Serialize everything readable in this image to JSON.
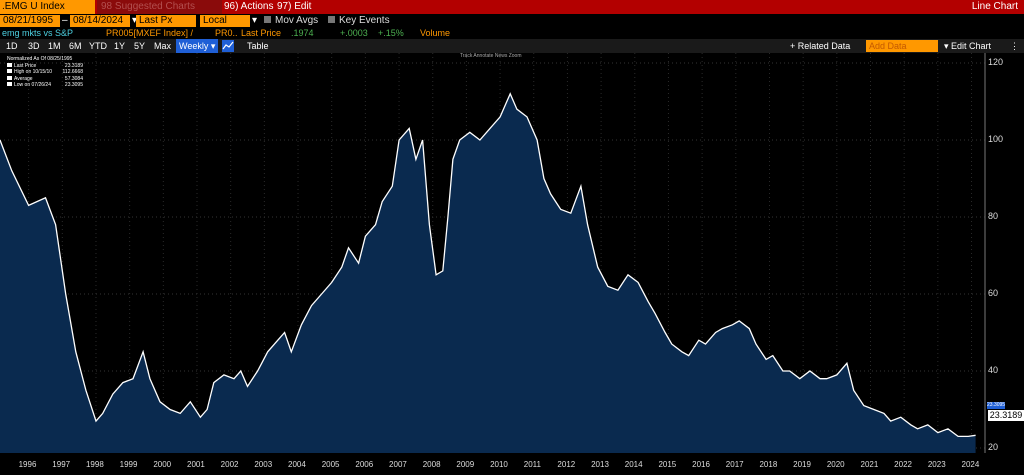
{
  "topbar": {
    "ticker": ".EMG U Index",
    "suggested": "98 Suggested Charts",
    "actions": "96) Actions",
    "edit": "97) Edit",
    "chart_type": "Line Chart"
  },
  "controls": {
    "start_date": "08/21/1995",
    "end_date": "08/14/2024",
    "field": "Last Px",
    "currency": "Local CCY",
    "mov_avgs": "Mov Avgs",
    "key_events": "Key Events"
  },
  "series_row": {
    "name": "emg mkts vs S&P",
    "formula": "PR005[MXEF Index] /",
    "formula2": "PR0..",
    "last_price_label": "Last Price",
    "last_price": ".1974",
    "change": "+.0003",
    "change_pct": "+.15%",
    "volume": "Volume"
  },
  "toolbar": {
    "periods": [
      "1D",
      "3D",
      "1M",
      "6M",
      "YTD",
      "1Y",
      "5Y",
      "Max"
    ],
    "frequency": "Weekly",
    "table": "Table",
    "related_data": "+ Related Data",
    "add_data": "Add Data",
    "edit_chart": "Edit Chart"
  },
  "mini_tools": "Track   Annotate   News   Zoom",
  "legend": {
    "title": "Normalized As Of 08/25/1995",
    "rows": [
      {
        "label": "Last Price",
        "value": "23.3189",
        "color": "#ffffff"
      },
      {
        "label": "High on 10/15/10",
        "value": "112.6668",
        "color": "#ffffff"
      },
      {
        "label": "Average",
        "value": "57.3084",
        "color": "#ffffff"
      },
      {
        "label": "Low on 07/26/24",
        "value": "23.3095",
        "color": "#ffffff"
      }
    ]
  },
  "value_label": "23.3189",
  "value_tag": "23.3095",
  "chart_data": {
    "type": "area",
    "x": [
      1995.65,
      1996.0,
      1996.5,
      1997.0,
      1997.3,
      1997.6,
      1997.9,
      1998.2,
      1998.5,
      1998.7,
      1999.0,
      1999.3,
      1999.6,
      1999.9,
      2000.1,
      2000.4,
      2000.7,
      2001.0,
      2001.3,
      2001.6,
      2001.8,
      2002.0,
      2002.3,
      2002.6,
      2002.8,
      2003.0,
      2003.3,
      2003.6,
      2003.9,
      2004.1,
      2004.3,
      2004.6,
      2004.9,
      2005.2,
      2005.5,
      2005.8,
      2006.0,
      2006.3,
      2006.5,
      2006.8,
      2007.0,
      2007.3,
      2007.5,
      2007.8,
      2008.0,
      2008.2,
      2008.4,
      2008.6,
      2008.8,
      2008.95,
      2009.1,
      2009.3,
      2009.6,
      2009.9,
      2010.2,
      2010.5,
      2010.8,
      2011.0,
      2011.3,
      2011.6,
      2011.8,
      2012.0,
      2012.3,
      2012.6,
      2012.9,
      2013.1,
      2013.4,
      2013.7,
      2014.0,
      2014.3,
      2014.6,
      2014.9,
      2015.1,
      2015.4,
      2015.6,
      2015.9,
      2016.1,
      2016.4,
      2016.6,
      2016.9,
      2017.1,
      2017.4,
      2017.6,
      2017.9,
      2018.1,
      2018.4,
      2018.6,
      2018.9,
      2019.1,
      2019.4,
      2019.7,
      2020.0,
      2020.2,
      2020.5,
      2020.8,
      2021.0,
      2021.3,
      2021.6,
      2021.9,
      2022.1,
      2022.4,
      2022.7,
      2022.9,
      2023.2,
      2023.5,
      2023.8,
      2024.1,
      2024.4,
      2024.62
    ],
    "values": [
      100,
      92,
      83,
      85,
      78,
      60,
      45,
      35,
      27,
      29,
      34,
      37,
      38,
      45,
      38,
      32,
      30,
      29,
      32,
      28,
      30,
      37,
      39,
      38,
      40,
      36,
      40,
      45,
      48,
      50,
      45,
      52,
      57,
      60,
      63,
      67,
      72,
      68,
      75,
      78,
      84,
      88,
      100,
      103,
      95,
      100,
      78,
      65,
      66,
      80,
      95,
      100,
      102,
      100,
      103,
      106,
      112,
      108,
      106,
      100,
      90,
      86,
      82,
      81,
      88,
      78,
      67,
      62,
      61,
      65,
      63,
      58,
      55,
      50,
      47,
      45,
      44,
      48,
      47,
      50,
      51,
      52,
      53,
      51,
      47,
      43,
      44,
      40,
      40,
      38,
      40,
      38,
      38,
      39,
      42,
      35,
      31,
      30,
      29,
      27,
      28,
      26,
      25,
      26,
      24,
      25,
      23,
      23,
      23.3
    ],
    "xlim": [
      1995.65,
      2024.9
    ],
    "ylim": [
      20,
      120
    ],
    "y_ticks": [
      20,
      40,
      60,
      80,
      100,
      120
    ],
    "x_ticks": [
      "1996",
      "1997",
      "1998",
      "1999",
      "2000",
      "2001",
      "2002",
      "2003",
      "2004",
      "2005",
      "2006",
      "2007",
      "2008",
      "2009",
      "2010",
      "2011",
      "2012",
      "2013",
      "2014",
      "2015",
      "2016",
      "2017",
      "2018",
      "2019",
      "2020",
      "2021",
      "2022",
      "2023",
      "2024"
    ],
    "line_color": "#ffffff",
    "fill_color": "#0a2a4f",
    "grid": true
  }
}
